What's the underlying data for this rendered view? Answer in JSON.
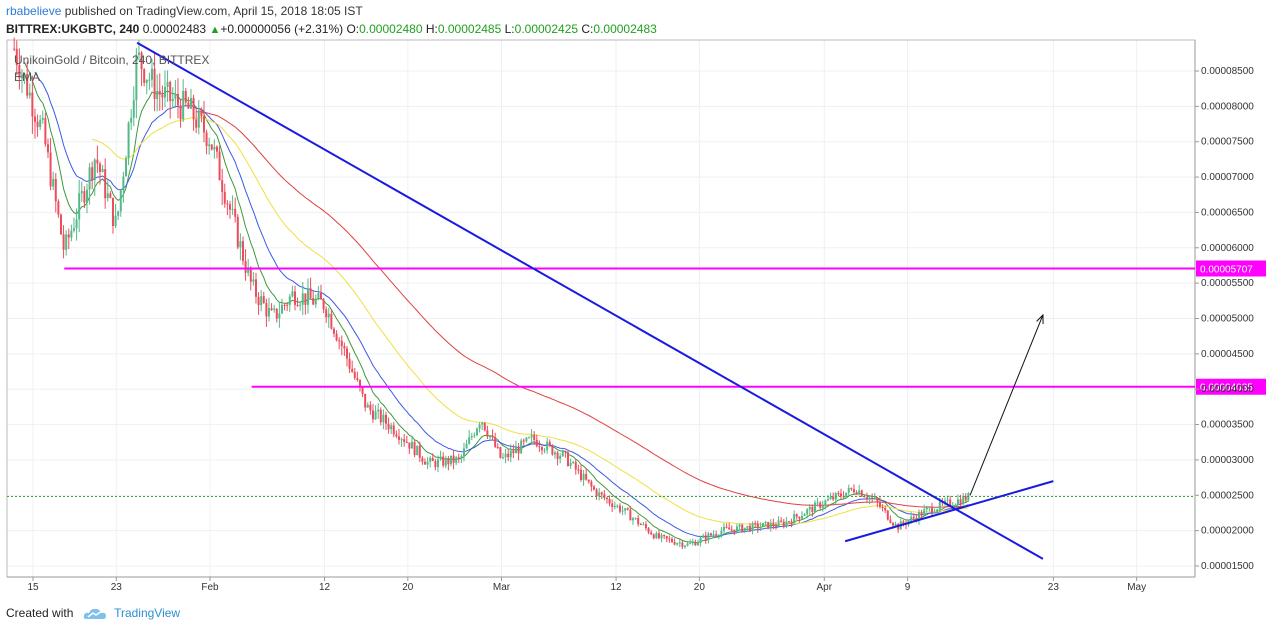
{
  "header": {
    "author": "rbabelieve",
    "published": "published on TradingView.com, April 15, 2018 18:05 IST",
    "symbol": "BITTREX:UKGBTC, 240",
    "last": "0.00002483",
    "change": "+0.00000056 (+2.31%)",
    "o_label": "O:",
    "o_value": "0.00002480",
    "h_label": "H:",
    "h_value": "0.00002485",
    "l_label": "L:",
    "l_value": "0.00002425",
    "c_label": "C:",
    "c_value": "0.00002483"
  },
  "legend": {
    "name": "UnikoinGold / Bitcoin, 240, BITTREX",
    "indicator": "EMA"
  },
  "footer": {
    "created_with": "Created with",
    "brand": "TradingView"
  },
  "colors": {
    "bull": "#53b987",
    "bear": "#eb4d5c",
    "ema_green": "#3c9a3c",
    "ema_blue": "#3c5ae6",
    "ema_yellow": "#f0e040",
    "ema_red": "#e04040",
    "trendline": "#1a1ae0",
    "level": "#ff00ff",
    "last_line": "#3ca03c"
  },
  "chart_data": {
    "type": "candlestick",
    "y_ticks": [
      "0.00008500",
      "0.00008000",
      "0.00007500",
      "0.00007000",
      "0.00006500",
      "0.00006000",
      "0.00005500",
      "0.00005000",
      "0.00004500",
      "0.00004000",
      "0.00003500",
      "0.00003000",
      "0.00002500",
      "0.00002000",
      "0.00001500"
    ],
    "x_ticks": [
      "15",
      "23",
      "Feb",
      "12",
      "20",
      "Mar",
      "12",
      "20",
      "Apr",
      "9",
      "23",
      "May"
    ],
    "levels": [
      {
        "value": 5.707e-05,
        "label": "0.00005707"
      },
      {
        "value": 4.035e-05,
        "label": "0.00004035"
      }
    ],
    "last_price": 2.483e-05,
    "price_path": [
      [
        "Jan 13",
        8.9e-05
      ],
      [
        "Jan 16",
        7.6e-05
      ],
      [
        "Jan 18",
        5.95e-05
      ],
      [
        "Jan 21",
        7.3e-05
      ],
      [
        "Jan 23",
        6.3e-05
      ],
      [
        "Jan 25",
        8.7e-05
      ],
      [
        "Jan 27",
        8.2e-05
      ],
      [
        "Jan 30",
        7.95e-05
      ],
      [
        "Feb 1",
        7.55e-05
      ],
      [
        "Feb 3",
        6.5e-05
      ],
      [
        "Feb 5",
        5.45e-05
      ],
      [
        "Feb 7",
        5e-05
      ],
      [
        "Feb 9",
        5.35e-05
      ],
      [
        "Feb 12",
        5.2e-05
      ],
      [
        "Feb 14",
        4.5e-05
      ],
      [
        "Feb 16",
        3.75e-05
      ],
      [
        "Feb 19",
        3.4e-05
      ],
      [
        "Feb 22",
        2.95e-05
      ],
      [
        "Feb 25",
        3e-05
      ],
      [
        "Feb 27",
        3.6e-05
      ],
      [
        "Mar 1",
        3e-05
      ],
      [
        "Mar 4",
        3.3e-05
      ],
      [
        "Mar 7",
        3.05e-05
      ],
      [
        "Mar 10",
        2.55e-05
      ],
      [
        "Mar 13",
        2.25e-05
      ],
      [
        "Mar 16",
        1.9e-05
      ],
      [
        "Mar 19",
        1.8e-05
      ],
      [
        "Mar 22",
        2e-05
      ],
      [
        "Mar 25",
        2.05e-05
      ],
      [
        "Mar 28",
        2.1e-05
      ],
      [
        "Apr 1",
        2.4e-05
      ],
      [
        "Apr 4",
        2.6e-05
      ],
      [
        "Apr 6",
        2.4e-05
      ],
      [
        "Apr 8",
        2.05e-05
      ],
      [
        "Apr 11",
        2.3e-05
      ],
      [
        "Apr 15",
        2.48e-05
      ]
    ],
    "trendlines": [
      {
        "from": [
          "Jan 25",
          8.9e-05
        ],
        "to": [
          "Apr 22",
          1.6e-05
        ]
      },
      {
        "from": [
          "Apr 3",
          1.85e-05
        ],
        "to": [
          "Apr 23",
          2.7e-05
        ]
      }
    ],
    "arrow": {
      "from": [
        "Apr 15",
        2.5e-05
      ],
      "to": [
        "Apr 22",
        5.05e-05
      ]
    }
  }
}
